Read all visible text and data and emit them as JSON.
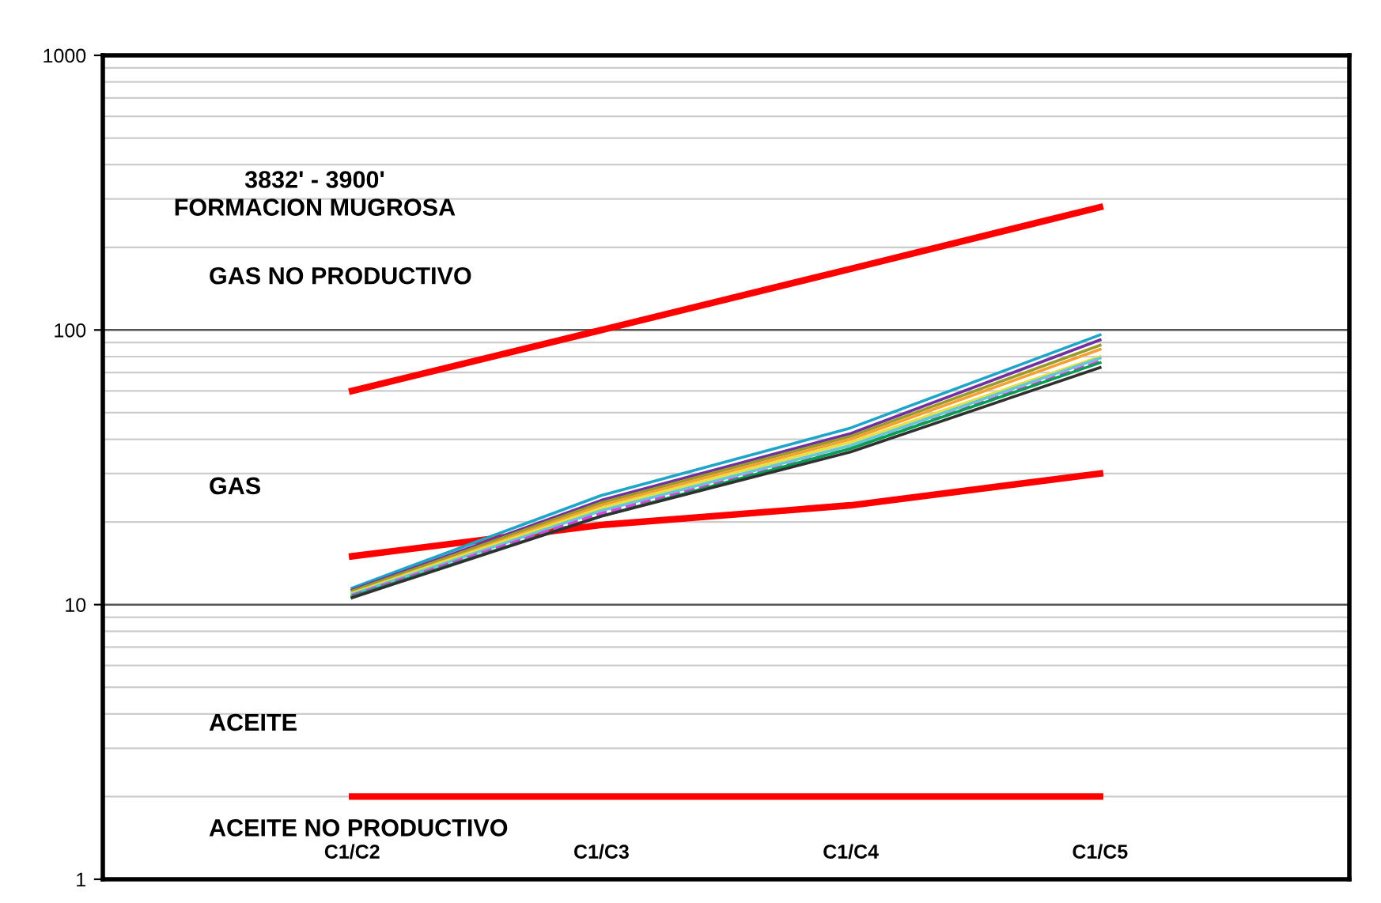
{
  "chart_data": {
    "type": "line",
    "title": "3832' - 3900'\nFORMACION MUGROSA",
    "categories": [
      "C1/C2",
      "C1/C3",
      "C1/C4",
      "C1/C5"
    ],
    "series": [
      {
        "color": "#ff0000",
        "values": [
          60,
          100,
          167,
          280
        ]
      },
      {
        "color": "#ff0000",
        "values": [
          15,
          19.5,
          23,
          30
        ]
      },
      {
        "color": "#ff0000",
        "values": [
          2,
          2,
          2,
          2
        ]
      },
      {
        "color": "#1fa5c8",
        "values": [
          11.5,
          25,
          44,
          96
        ]
      },
      {
        "color": "#7030a0",
        "values": [
          11.3,
          24,
          42,
          92
        ]
      },
      {
        "color": "#9b9b2a",
        "values": [
          11.2,
          23.5,
          41,
          88
        ]
      },
      {
        "color": "#f5a030",
        "values": [
          11.0,
          23,
          40,
          85
        ]
      },
      {
        "color": "#e8e040",
        "values": [
          11.0,
          22.5,
          39,
          80
        ]
      },
      {
        "color": "#60c8d8",
        "values": [
          10.9,
          22,
          38,
          79
        ]
      },
      {
        "color": "#e040e0",
        "values": [
          10.8,
          21.5,
          37,
          77
        ],
        "line_style": "dashed"
      },
      {
        "color": "#00a050",
        "values": [
          10.7,
          21,
          37,
          76
        ]
      },
      {
        "color": "#303030",
        "values": [
          10.6,
          21,
          36,
          73
        ]
      }
    ],
    "log": "y",
    "ylim": [
      1,
      1000
    ],
    "yticks": [
      1,
      10,
      100,
      1000
    ],
    "grid": "y",
    "marker": "none",
    "line_style": "solid",
    "annotations": [
      "GAS NO PRODUCTIVO",
      "GAS",
      "ACEITE",
      "ACEITE NO PRODUCTIVO"
    ]
  }
}
